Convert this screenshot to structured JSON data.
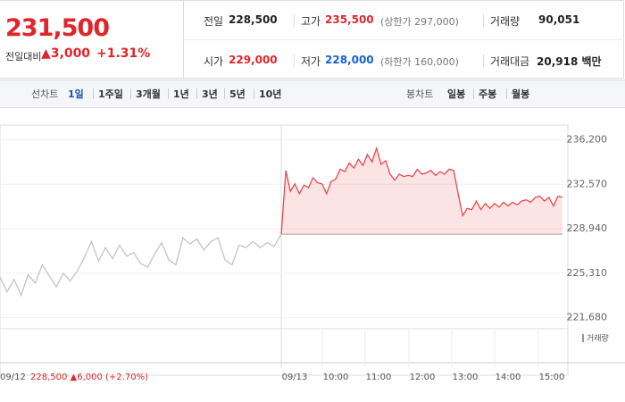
{
  "header": {
    "price": "231,500",
    "change_label": "전일대비",
    "change": "▲3,000",
    "change_pct": "+1.31%",
    "stats": [
      [
        {
          "label": "전일",
          "value": "228,500"
        },
        {
          "label": "고가",
          "value": "235,500",
          "note": "(상한가 297,000)"
        },
        {
          "label": "거래량",
          "value": "90,051"
        }
      ],
      [
        {
          "label": "시가",
          "value": "229,000"
        },
        {
          "label": "저가",
          "value": "228,000",
          "note": "(하한가 160,000)"
        },
        {
          "label": "거래대금",
          "value": "20,918 백만"
        }
      ]
    ]
  },
  "tabs": {
    "line_label": "선차트",
    "line": [
      "1일",
      "1주일",
      "3개월",
      "1년",
      "3년",
      "5년",
      "10년"
    ],
    "candle_label": "봉차트",
    "candle": [
      "일봉",
      "주봉",
      "월봉"
    ]
  },
  "chart_data": {
    "type": "line",
    "ylim": [
      221000,
      237400
    ],
    "yticks": [
      {
        "value": 236200,
        "label": "236,200"
      },
      {
        "value": 232570,
        "label": "232,570"
      },
      {
        "value": 228940,
        "label": "228,940"
      },
      {
        "value": 225310,
        "label": "225,310"
      },
      {
        "value": 221680,
        "label": "221,680"
      }
    ],
    "baseline": 228500,
    "series": [
      {
        "color": "#c4c4c4",
        "values": [
          225000,
          223800,
          224800,
          223500,
          225200,
          224500,
          226000,
          225100,
          224200,
          225300,
          224700,
          225500,
          226600,
          227900,
          226300,
          227400,
          226500,
          227600,
          226700,
          227000,
          226100,
          225800,
          226900,
          227800,
          226400,
          226000,
          228200,
          227700,
          228100,
          227200,
          227900,
          228200,
          226400,
          226000,
          227600,
          227400,
          227900,
          227400,
          227800,
          227500,
          228500
        ]
      },
      {
        "color": "#e8484e",
        "values": [
          228500,
          233700,
          232000,
          232600,
          231800,
          232500,
          232300,
          233100,
          232700,
          232600,
          231800,
          232800,
          233000,
          233800,
          233600,
          234300,
          233900,
          234600,
          234100,
          235000,
          234400,
          235500,
          234200,
          234500,
          233400,
          232900,
          233400,
          233200,
          233300,
          233200,
          233800,
          233400,
          233500,
          233700,
          233300,
          233600,
          233400,
          233800,
          233700,
          231800,
          230000,
          230600,
          230500,
          231200,
          230500,
          231000,
          230600,
          231000,
          230700,
          231100,
          230800,
          231100,
          230900,
          231200,
          231300,
          231100,
          231500,
          231600,
          231200,
          231500,
          230800,
          231600,
          231500
        ]
      }
    ],
    "volume_label": "거래량",
    "prev_day": "09/12",
    "prev_summary": "228,500 ▲6,000 (+2.70%)",
    "x_labels": [
      "09/13",
      "10:00",
      "11:00",
      "12:00",
      "13:00",
      "14:00",
      "15:00"
    ]
  }
}
